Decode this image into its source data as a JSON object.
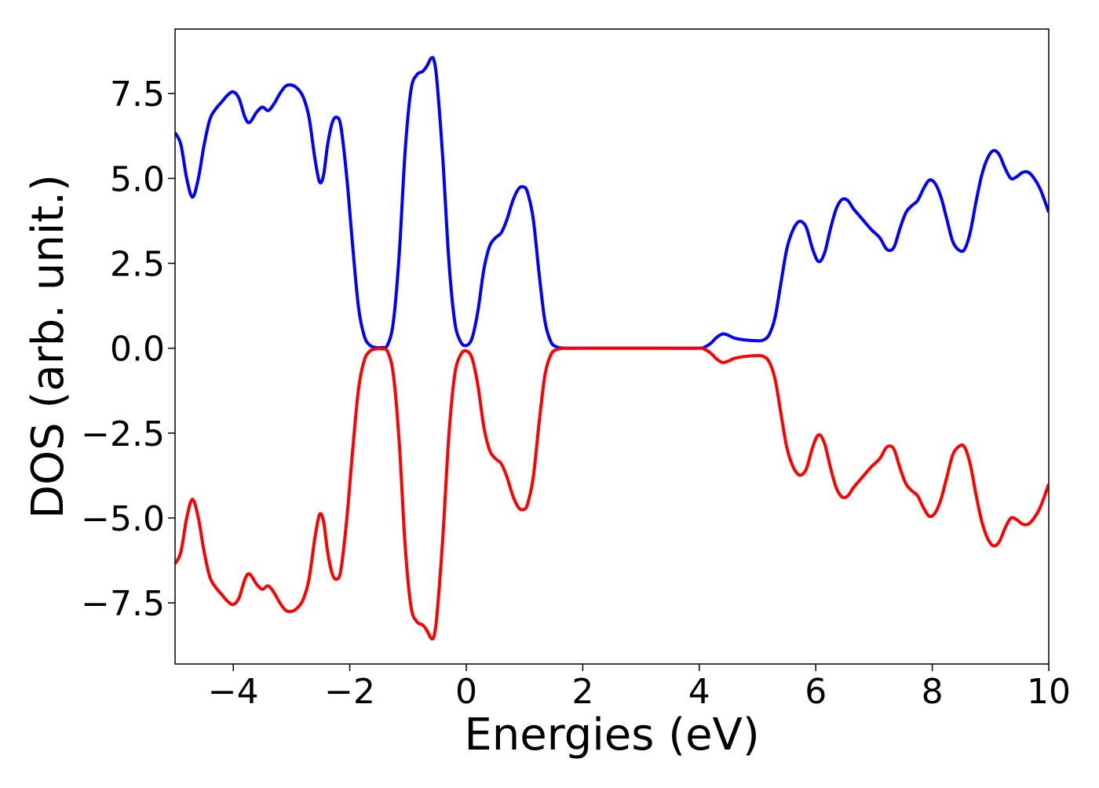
{
  "chart_data": {
    "type": "line",
    "title": "",
    "xlabel": "Energies (eV)",
    "ylabel": "DOS (arb. unit.)",
    "xlim": [
      -5,
      10
    ],
    "ylim": [
      -9.3,
      9.4
    ],
    "xticks": [
      -4,
      -2,
      0,
      2,
      4,
      6,
      8,
      10
    ],
    "xtick_labels": [
      "−4",
      "−2",
      "0",
      "2",
      "4",
      "6",
      "8",
      "10"
    ],
    "yticks": [
      -7.5,
      -5.0,
      -2.5,
      0.0,
      2.5,
      5.0,
      7.5
    ],
    "ytick_labels": [
      "−7.5",
      "−5.0",
      "−2.5",
      "0.0",
      "2.5",
      "5.0",
      "7.5"
    ],
    "grid": false,
    "legend": "none",
    "series": [
      {
        "color": "#0000ff",
        "points": [
          [
            -5.0,
            6.35
          ],
          [
            -4.9,
            6.0
          ],
          [
            -4.8,
            5.0
          ],
          [
            -4.7,
            4.45
          ],
          [
            -4.6,
            5.0
          ],
          [
            -4.5,
            6.0
          ],
          [
            -4.4,
            6.75
          ],
          [
            -4.3,
            7.05
          ],
          [
            -4.2,
            7.25
          ],
          [
            -4.1,
            7.45
          ],
          [
            -4.0,
            7.55
          ],
          [
            -3.9,
            7.35
          ],
          [
            -3.8,
            6.8
          ],
          [
            -3.72,
            6.65
          ],
          [
            -3.6,
            6.95
          ],
          [
            -3.5,
            7.1
          ],
          [
            -3.4,
            7.0
          ],
          [
            -3.3,
            7.2
          ],
          [
            -3.2,
            7.5
          ],
          [
            -3.1,
            7.72
          ],
          [
            -3.0,
            7.75
          ],
          [
            -2.9,
            7.65
          ],
          [
            -2.8,
            7.4
          ],
          [
            -2.7,
            6.8
          ],
          [
            -2.6,
            5.6
          ],
          [
            -2.52,
            4.9
          ],
          [
            -2.45,
            5.1
          ],
          [
            -2.38,
            6.0
          ],
          [
            -2.3,
            6.65
          ],
          [
            -2.22,
            6.8
          ],
          [
            -2.15,
            6.5
          ],
          [
            -2.05,
            5.0
          ],
          [
            -1.95,
            3.0
          ],
          [
            -1.85,
            1.2
          ],
          [
            -1.75,
            0.35
          ],
          [
            -1.65,
            0.08
          ],
          [
            -1.55,
            0.02
          ],
          [
            -1.45,
            0.02
          ],
          [
            -1.35,
            0.1
          ],
          [
            -1.25,
            0.8
          ],
          [
            -1.15,
            2.8
          ],
          [
            -1.05,
            5.8
          ],
          [
            -0.95,
            7.6
          ],
          [
            -0.85,
            8.05
          ],
          [
            -0.75,
            8.15
          ],
          [
            -0.68,
            8.3
          ],
          [
            -0.6,
            8.55
          ],
          [
            -0.55,
            8.45
          ],
          [
            -0.5,
            7.8
          ],
          [
            -0.4,
            5.5
          ],
          [
            -0.3,
            2.6
          ],
          [
            -0.2,
            0.8
          ],
          [
            -0.1,
            0.2
          ],
          [
            0.0,
            0.08
          ],
          [
            0.1,
            0.3
          ],
          [
            0.2,
            1.1
          ],
          [
            0.3,
            2.3
          ],
          [
            0.4,
            3.0
          ],
          [
            0.5,
            3.25
          ],
          [
            0.6,
            3.4
          ],
          [
            0.7,
            3.8
          ],
          [
            0.8,
            4.35
          ],
          [
            0.9,
            4.7
          ],
          [
            0.98,
            4.75
          ],
          [
            1.05,
            4.6
          ],
          [
            1.15,
            3.8
          ],
          [
            1.25,
            2.2
          ],
          [
            1.35,
            0.8
          ],
          [
            1.45,
            0.2
          ],
          [
            1.55,
            0.04
          ],
          [
            1.7,
            0.0
          ],
          [
            2.0,
            0.0
          ],
          [
            2.5,
            0.0
          ],
          [
            3.0,
            0.0
          ],
          [
            3.5,
            0.0
          ],
          [
            4.0,
            0.0
          ],
          [
            4.1,
            0.04
          ],
          [
            4.2,
            0.15
          ],
          [
            4.3,
            0.32
          ],
          [
            4.4,
            0.42
          ],
          [
            4.5,
            0.38
          ],
          [
            4.6,
            0.3
          ],
          [
            4.8,
            0.24
          ],
          [
            5.0,
            0.22
          ],
          [
            5.1,
            0.24
          ],
          [
            5.2,
            0.4
          ],
          [
            5.3,
            0.9
          ],
          [
            5.4,
            1.9
          ],
          [
            5.5,
            2.9
          ],
          [
            5.6,
            3.45
          ],
          [
            5.7,
            3.72
          ],
          [
            5.78,
            3.7
          ],
          [
            5.85,
            3.5
          ],
          [
            5.95,
            2.9
          ],
          [
            6.05,
            2.55
          ],
          [
            6.15,
            2.8
          ],
          [
            6.25,
            3.5
          ],
          [
            6.35,
            4.1
          ],
          [
            6.45,
            4.38
          ],
          [
            6.55,
            4.35
          ],
          [
            6.65,
            4.1
          ],
          [
            6.8,
            3.8
          ],
          [
            6.95,
            3.5
          ],
          [
            7.1,
            3.25
          ],
          [
            7.2,
            2.95
          ],
          [
            7.27,
            2.88
          ],
          [
            7.35,
            3.0
          ],
          [
            7.45,
            3.55
          ],
          [
            7.55,
            4.0
          ],
          [
            7.65,
            4.2
          ],
          [
            7.75,
            4.35
          ],
          [
            7.85,
            4.7
          ],
          [
            7.95,
            4.95
          ],
          [
            8.05,
            4.85
          ],
          [
            8.15,
            4.45
          ],
          [
            8.25,
            3.8
          ],
          [
            8.35,
            3.15
          ],
          [
            8.45,
            2.9
          ],
          [
            8.55,
            2.9
          ],
          [
            8.65,
            3.4
          ],
          [
            8.75,
            4.3
          ],
          [
            8.85,
            5.1
          ],
          [
            8.95,
            5.6
          ],
          [
            9.05,
            5.82
          ],
          [
            9.15,
            5.7
          ],
          [
            9.25,
            5.3
          ],
          [
            9.35,
            5.0
          ],
          [
            9.45,
            5.05
          ],
          [
            9.55,
            5.18
          ],
          [
            9.65,
            5.18
          ],
          [
            9.75,
            5.0
          ],
          [
            9.85,
            4.7
          ],
          [
            9.95,
            4.25
          ],
          [
            10.0,
            4.0
          ]
        ]
      },
      {
        "color": "#ff0000",
        "points": [
          [
            -5.0,
            -6.35
          ],
          [
            -4.9,
            -6.0
          ],
          [
            -4.8,
            -5.0
          ],
          [
            -4.7,
            -4.45
          ],
          [
            -4.6,
            -5.0
          ],
          [
            -4.5,
            -6.0
          ],
          [
            -4.4,
            -6.75
          ],
          [
            -4.3,
            -7.05
          ],
          [
            -4.2,
            -7.25
          ],
          [
            -4.1,
            -7.45
          ],
          [
            -4.0,
            -7.55
          ],
          [
            -3.9,
            -7.35
          ],
          [
            -3.8,
            -6.8
          ],
          [
            -3.72,
            -6.65
          ],
          [
            -3.6,
            -6.95
          ],
          [
            -3.5,
            -7.1
          ],
          [
            -3.4,
            -7.0
          ],
          [
            -3.3,
            -7.2
          ],
          [
            -3.2,
            -7.5
          ],
          [
            -3.1,
            -7.72
          ],
          [
            -3.0,
            -7.75
          ],
          [
            -2.9,
            -7.65
          ],
          [
            -2.8,
            -7.4
          ],
          [
            -2.7,
            -6.8
          ],
          [
            -2.6,
            -5.6
          ],
          [
            -2.52,
            -4.9
          ],
          [
            -2.45,
            -5.1
          ],
          [
            -2.38,
            -6.0
          ],
          [
            -2.3,
            -6.65
          ],
          [
            -2.22,
            -6.8
          ],
          [
            -2.15,
            -6.5
          ],
          [
            -2.05,
            -5.0
          ],
          [
            -1.95,
            -3.0
          ],
          [
            -1.85,
            -1.2
          ],
          [
            -1.75,
            -0.35
          ],
          [
            -1.65,
            -0.08
          ],
          [
            -1.55,
            -0.02
          ],
          [
            -1.45,
            -0.02
          ],
          [
            -1.35,
            -0.1
          ],
          [
            -1.25,
            -0.8
          ],
          [
            -1.15,
            -2.8
          ],
          [
            -1.05,
            -5.8
          ],
          [
            -0.95,
            -7.6
          ],
          [
            -0.85,
            -8.05
          ],
          [
            -0.75,
            -8.15
          ],
          [
            -0.68,
            -8.3
          ],
          [
            -0.6,
            -8.55
          ],
          [
            -0.55,
            -8.45
          ],
          [
            -0.5,
            -7.8
          ],
          [
            -0.4,
            -5.5
          ],
          [
            -0.3,
            -2.6
          ],
          [
            -0.2,
            -0.8
          ],
          [
            -0.1,
            -0.2
          ],
          [
            0.0,
            -0.08
          ],
          [
            0.1,
            -0.3
          ],
          [
            0.2,
            -1.1
          ],
          [
            0.3,
            -2.3
          ],
          [
            0.4,
            -3.0
          ],
          [
            0.5,
            -3.25
          ],
          [
            0.6,
            -3.4
          ],
          [
            0.7,
            -3.8
          ],
          [
            0.8,
            -4.35
          ],
          [
            0.9,
            -4.7
          ],
          [
            0.98,
            -4.75
          ],
          [
            1.05,
            -4.6
          ],
          [
            1.15,
            -3.8
          ],
          [
            1.25,
            -2.2
          ],
          [
            1.35,
            -0.8
          ],
          [
            1.45,
            -0.2
          ],
          [
            1.55,
            -0.04
          ],
          [
            1.7,
            0.0
          ],
          [
            2.0,
            0.0
          ],
          [
            2.5,
            0.0
          ],
          [
            3.0,
            0.0
          ],
          [
            3.5,
            0.0
          ],
          [
            4.0,
            0.0
          ],
          [
            4.1,
            -0.04
          ],
          [
            4.2,
            -0.15
          ],
          [
            4.3,
            -0.32
          ],
          [
            4.4,
            -0.42
          ],
          [
            4.5,
            -0.38
          ],
          [
            4.6,
            -0.3
          ],
          [
            4.8,
            -0.24
          ],
          [
            5.0,
            -0.22
          ],
          [
            5.1,
            -0.24
          ],
          [
            5.2,
            -0.4
          ],
          [
            5.3,
            -0.9
          ],
          [
            5.4,
            -1.9
          ],
          [
            5.5,
            -2.9
          ],
          [
            5.6,
            -3.45
          ],
          [
            5.7,
            -3.72
          ],
          [
            5.78,
            -3.7
          ],
          [
            5.85,
            -3.5
          ],
          [
            5.95,
            -2.9
          ],
          [
            6.05,
            -2.55
          ],
          [
            6.15,
            -2.8
          ],
          [
            6.25,
            -3.5
          ],
          [
            6.35,
            -4.1
          ],
          [
            6.45,
            -4.38
          ],
          [
            6.55,
            -4.35
          ],
          [
            6.65,
            -4.1
          ],
          [
            6.8,
            -3.8
          ],
          [
            6.95,
            -3.5
          ],
          [
            7.1,
            -3.25
          ],
          [
            7.2,
            -2.95
          ],
          [
            7.27,
            -2.88
          ],
          [
            7.35,
            -3.0
          ],
          [
            7.45,
            -3.55
          ],
          [
            7.55,
            -4.0
          ],
          [
            7.65,
            -4.2
          ],
          [
            7.75,
            -4.35
          ],
          [
            7.85,
            -4.7
          ],
          [
            7.95,
            -4.95
          ],
          [
            8.05,
            -4.85
          ],
          [
            8.15,
            -4.45
          ],
          [
            8.25,
            -3.8
          ],
          [
            8.35,
            -3.15
          ],
          [
            8.45,
            -2.9
          ],
          [
            8.55,
            -2.9
          ],
          [
            8.65,
            -3.4
          ],
          [
            8.75,
            -4.3
          ],
          [
            8.85,
            -5.1
          ],
          [
            8.95,
            -5.6
          ],
          [
            9.05,
            -5.82
          ],
          [
            9.15,
            -5.7
          ],
          [
            9.25,
            -5.3
          ],
          [
            9.35,
            -5.0
          ],
          [
            9.45,
            -5.05
          ],
          [
            9.55,
            -5.18
          ],
          [
            9.65,
            -5.18
          ],
          [
            9.75,
            -5.0
          ],
          [
            9.85,
            -4.7
          ],
          [
            9.95,
            -4.25
          ],
          [
            10.0,
            -4.0
          ]
        ]
      }
    ]
  }
}
